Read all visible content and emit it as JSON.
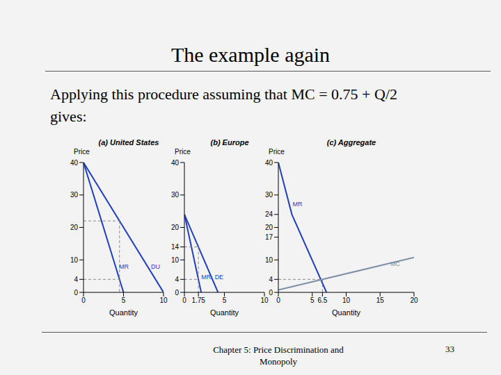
{
  "title": "The example again",
  "text": "Applying this procedure assuming that MC = 0.75 + Q/2 gives:",
  "footer": "Chapter 5: Price Discrimination and Monopoly",
  "page": "33",
  "chart_data": [
    {
      "type": "line",
      "title": "(a) United States",
      "x_label": "Quantity",
      "y_label": "Price",
      "xlim": [
        0,
        10
      ],
      "ylim": [
        0,
        40
      ],
      "xticks": [
        0,
        5,
        10
      ],
      "yticks": [
        0,
        4,
        10,
        20,
        30,
        40
      ],
      "grid": false,
      "series": [
        {
          "name": "DU",
          "color": "#1f3fbf",
          "line_style": "solid",
          "x": [
            0,
            10
          ],
          "values": [
            40,
            0
          ]
        },
        {
          "name": "MR",
          "color": "#1f3fbf",
          "line_style": "solid",
          "x": [
            0,
            5
          ],
          "values": [
            40,
            0
          ]
        },
        {
          "color": "#888888",
          "line_style": "dashed",
          "x": [
            0,
            4.5
          ],
          "values": [
            22,
            22
          ]
        },
        {
          "color": "#888888",
          "line_style": "dashed",
          "x": [
            4.5,
            4.5
          ],
          "values": [
            22,
            0
          ]
        },
        {
          "color": "#888888",
          "line_style": "dashed",
          "x": [
            0,
            4.5
          ],
          "values": [
            4,
            4
          ]
        }
      ]
    },
    {
      "type": "line",
      "title": "(b) Europe",
      "x_label": "Quantity",
      "y_label": "Price",
      "xlim": [
        0,
        10
      ],
      "ylim": [
        0,
        40
      ],
      "xticks": [
        0,
        1.75,
        5,
        10
      ],
      "yticks": [
        0,
        4,
        10,
        14,
        20,
        30,
        40
      ],
      "grid": false,
      "series": [
        {
          "name": "DE",
          "color": "#1f3fbf",
          "line_style": "solid",
          "x": [
            0,
            4.2
          ],
          "values": [
            24,
            0
          ]
        },
        {
          "name": "MR",
          "color": "#1f3fbf",
          "line_style": "solid",
          "x": [
            0,
            2.1
          ],
          "values": [
            24,
            0
          ]
        },
        {
          "color": "#888888",
          "line_style": "dashed",
          "x": [
            0,
            1.75
          ],
          "values": [
            14,
            14
          ]
        },
        {
          "color": "#888888",
          "line_style": "dashed",
          "x": [
            1.75,
            1.75
          ],
          "values": [
            14,
            0
          ]
        },
        {
          "color": "#888888",
          "line_style": "dashed",
          "x": [
            0,
            1.75
          ],
          "values": [
            4,
            4
          ]
        }
      ]
    },
    {
      "type": "line",
      "title": "(c) Aggregate",
      "x_label": "Quantity",
      "y_label": "Price",
      "xlim": [
        0,
        20
      ],
      "ylim": [
        0,
        40
      ],
      "xticks": [
        0,
        5,
        6.5,
        10,
        15,
        20
      ],
      "yticks": [
        0,
        4,
        10,
        17,
        20,
        24,
        30,
        40
      ],
      "grid": false,
      "series": [
        {
          "name": "MR",
          "color": "#1f3fbf",
          "line_style": "solid",
          "x": [
            0,
            2,
            7.1
          ],
          "values": [
            40,
            24,
            0
          ]
        },
        {
          "name": "MC",
          "color": "#7f8fa6",
          "line_style": "solid",
          "x": [
            0,
            20
          ],
          "values": [
            0.75,
            10.75
          ]
        },
        {
          "color": "#888888",
          "line_style": "dashed",
          "x": [
            0,
            6.5
          ],
          "values": [
            4,
            4
          ]
        },
        {
          "color": "#888888",
          "line_style": "dashed",
          "x": [
            6.5,
            6.5
          ],
          "values": [
            4,
            0
          ]
        }
      ]
    }
  ]
}
